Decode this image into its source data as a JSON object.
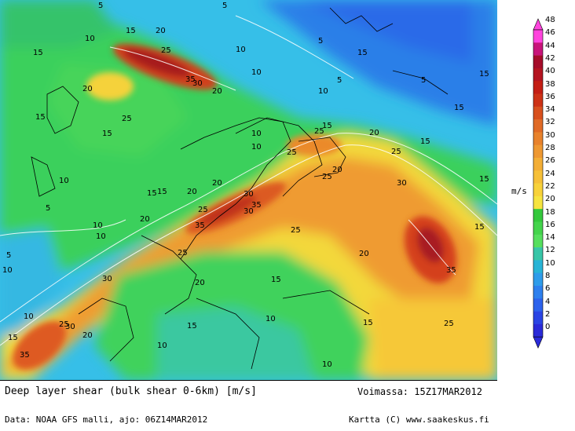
{
  "map": {
    "contour_labels": [
      "5",
      "10",
      "15",
      "20",
      "25",
      "30",
      "35"
    ]
  },
  "footer": {
    "title": "Deep layer shear (bulk shear 0-6km) [m/s]",
    "valid": "Voimassa: 15Z17MAR2012",
    "data_source": "Data: NOAA GFS malli, ajo: 06Z14MAR2012",
    "credit": "Kartta (C) www.saakeskus.fi"
  },
  "colorbar": {
    "unit": "m/s",
    "ticks": [
      "48",
      "46",
      "44",
      "42",
      "40",
      "38",
      "36",
      "34",
      "32",
      "30",
      "28",
      "26",
      "24",
      "22",
      "20",
      "18",
      "16",
      "14",
      "12",
      "10",
      "8",
      "6",
      "4",
      "2",
      "0"
    ],
    "colors": [
      "#ff44dd",
      "#c8147a",
      "#a50c2a",
      "#b41420",
      "#c41e14",
      "#cd3216",
      "#d8501e",
      "#e06a26",
      "#e8822c",
      "#ee9832",
      "#f3ae36",
      "#f6c038",
      "#f8d23a",
      "#f6e440",
      "#34c83c",
      "#44d44c",
      "#56df5e",
      "#38c6a8",
      "#28b4d6",
      "#2e9cea",
      "#2e80ee",
      "#2c62ec",
      "#2a44e4",
      "#2a2ad8"
    ],
    "accent": "#e8822c"
  }
}
